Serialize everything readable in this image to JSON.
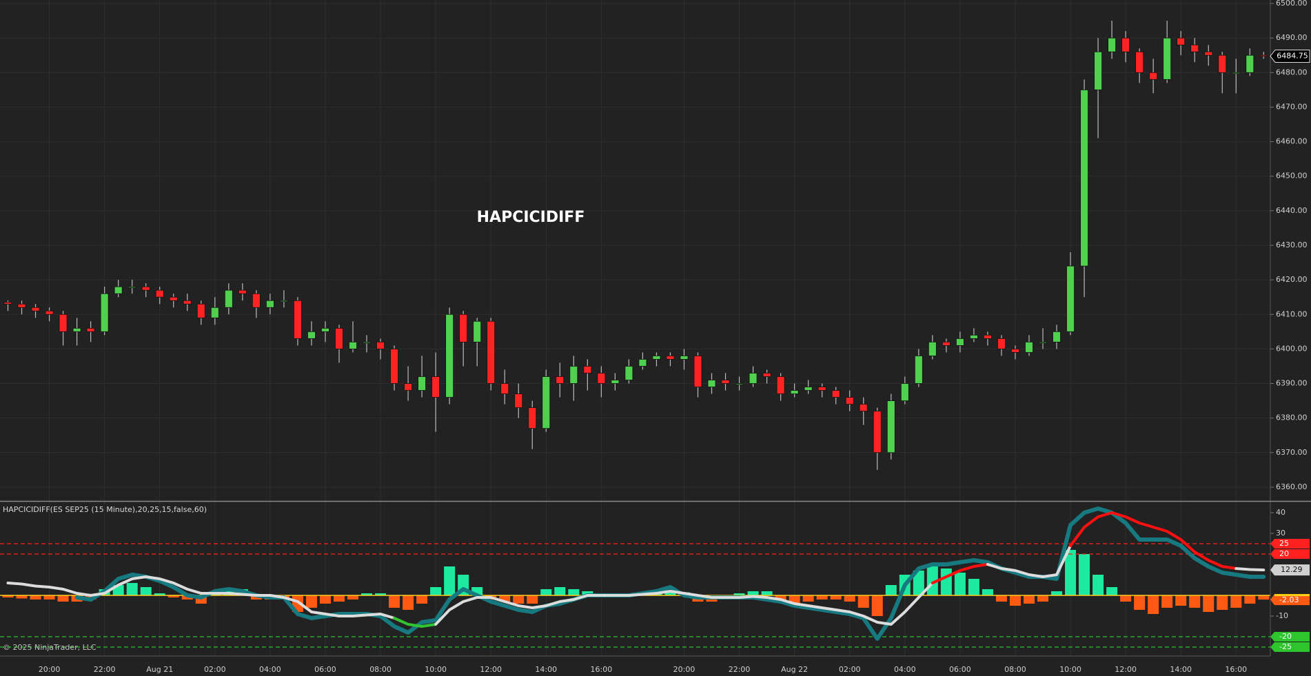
{
  "chart_data": [
    {
      "type": "candlestick",
      "title": "HAPCICIDIFF",
      "categories": [
        null,
        null,
        null,
        "20:00",
        null,
        null,
        null,
        "22:00",
        null,
        null,
        null,
        "Aug 21",
        null,
        null,
        null,
        "02:00",
        null,
        null,
        null,
        "04:00",
        null,
        null,
        null,
        "06:00",
        null,
        null,
        null,
        "08:00",
        null,
        null,
        null,
        "10:00",
        null,
        null,
        null,
        "12:00",
        null,
        null,
        null,
        "14:00",
        null,
        null,
        null,
        "16:00",
        null,
        null,
        null,
        null,
        null,
        "20:00",
        null,
        null,
        null,
        "22:00",
        null,
        null,
        null,
        "Aug 22",
        null,
        null,
        null,
        "02:00",
        null,
        null,
        null,
        "04:00",
        null,
        null,
        null,
        "06:00",
        null,
        null,
        null,
        "08:00",
        null,
        null,
        null,
        "10:00",
        null,
        null,
        null,
        "12:00",
        null,
        null,
        null,
        "14:00",
        null,
        null,
        null,
        "16:00",
        null,
        null
      ],
      "open": [
        6413.5,
        6413,
        6412,
        6411,
        6410,
        6405,
        6406,
        6405,
        6416,
        6418,
        6418,
        6417,
        6415,
        6414,
        6413,
        6409,
        6412,
        6417,
        6416,
        6412,
        6414,
        6414,
        6403,
        6405,
        6406,
        6400,
        6402,
        6402,
        6400,
        6390,
        6388,
        6392,
        6386,
        6410,
        6402,
        6408,
        6390,
        6387,
        6383,
        6377,
        6392,
        6390,
        6395,
        6393,
        6390,
        6391,
        6395,
        6397,
        6398,
        6397,
        6398,
        6389,
        6391,
        6390,
        6390,
        6393,
        6392,
        6387,
        6388,
        6389,
        6388,
        6386,
        6384,
        6382,
        6370,
        6385,
        6390,
        6398,
        6402,
        6401,
        6403,
        6404,
        6403,
        6400,
        6399,
        6402,
        6402,
        6405,
        6424,
        6475,
        6486,
        6490,
        6486,
        6480,
        6478,
        6490,
        6488,
        6486,
        6485,
        6480,
        6480,
        6485
      ],
      "high": [
        6414,
        6414,
        6413,
        6412,
        6411,
        6409,
        6408,
        6418,
        6420,
        6420,
        6419,
        6418,
        6416,
        6416,
        6414,
        6415,
        6419,
        6419,
        6417,
        6416,
        6417,
        6415,
        6408,
        6408,
        6407,
        6408,
        6404,
        6403,
        6401,
        6395,
        6398,
        6399,
        6412,
        6411,
        6409,
        6409,
        6394,
        6390,
        6385,
        6394,
        6396,
        6398,
        6397,
        6395,
        6393,
        6397,
        6399,
        6399,
        6399,
        6400,
        6399,
        6393,
        6393,
        6392,
        6395,
        6394,
        6393,
        6390,
        6391,
        6390,
        6389,
        6388,
        6386,
        6383,
        6387,
        6392,
        6400,
        6404,
        6403,
        6405,
        6406,
        6405,
        6404,
        6401,
        6404,
        6406,
        6407,
        6428,
        6478,
        6490,
        6495,
        6492,
        6487,
        6484,
        6495,
        6492,
        6490,
        6488,
        6486,
        6484,
        6487,
        6486
      ],
      "low": [
        6411,
        6410,
        6409,
        6408,
        6401,
        6401,
        6402,
        6404,
        6415,
        6416,
        6415,
        6413,
        6412,
        6411,
        6407,
        6407,
        6410,
        6414,
        6409,
        6410,
        6412,
        6401,
        6401,
        6402,
        6396,
        6399,
        6399,
        6397,
        6388,
        6385,
        6386,
        6376,
        6384,
        6395,
        6395,
        6388,
        6384,
        6380,
        6371,
        6376,
        6386,
        6385,
        6388,
        6386,
        6388,
        6390,
        6394,
        6395,
        6395,
        6394,
        6386,
        6387,
        6388,
        6388,
        6389,
        6390,
        6385,
        6386,
        6387,
        6386,
        6384,
        6382,
        6378,
        6365,
        6368,
        6384,
        6389,
        6397,
        6399,
        6399,
        6402,
        6401,
        6398,
        6397,
        6398,
        6400,
        6400,
        6404,
        6415,
        6461,
        6484,
        6483,
        6477,
        6474,
        6477,
        6485,
        6483,
        6482,
        6474,
        6474,
        6479,
        6484
      ],
      "close": [
        6413,
        6412,
        6411,
        6410,
        6405,
        6406,
        6405,
        6416,
        6418,
        6418,
        6417,
        6415,
        6414,
        6413,
        6409,
        6412,
        6417,
        6416,
        6412,
        6414,
        6414,
        6403,
        6405,
        6406,
        6400,
        6402,
        6402,
        6400,
        6390,
        6388,
        6392,
        6386,
        6410,
        6402,
        6408,
        6390,
        6387,
        6383,
        6377,
        6392,
        6390,
        6395,
        6393,
        6390,
        6391,
        6395,
        6397,
        6398,
        6397,
        6398,
        6389,
        6391,
        6390,
        6390,
        6393,
        6392,
        6387,
        6388,
        6389,
        6388,
        6386,
        6384,
        6382,
        6370,
        6385,
        6390,
        6398,
        6402,
        6401,
        6403,
        6404,
        6403,
        6400,
        6399,
        6402,
        6402,
        6405,
        6424,
        6475,
        6486,
        6490,
        6486,
        6480,
        6478,
        6490,
        6488,
        6486,
        6485,
        6480,
        6480,
        6485,
        6484.75
      ],
      "up_color": "#4fd04f",
      "down_color": "#ff2424",
      "wick_color": "#bdbdbd",
      "ylim": [
        6356,
        6501
      ],
      "yticks": [
        {
          "value": 6360,
          "label": "6360.00"
        },
        {
          "value": 6370,
          "label": "6370.00"
        },
        {
          "value": 6380,
          "label": "6380.00"
        },
        {
          "value": 6390,
          "label": "6390.00"
        },
        {
          "value": 6400,
          "label": "6400.00"
        },
        {
          "value": 6410,
          "label": "6410.00"
        },
        {
          "value": 6420,
          "label": "6420.00"
        },
        {
          "value": 6430,
          "label": "6430.00"
        },
        {
          "value": 6440,
          "label": "6440.00"
        },
        {
          "value": 6450,
          "label": "6450.00"
        },
        {
          "value": 6460,
          "label": "6460.00"
        },
        {
          "value": 6470,
          "label": "6470.00"
        },
        {
          "value": 6480,
          "label": "6480.00"
        },
        {
          "value": 6490,
          "label": "6490.00"
        },
        {
          "value": 6500,
          "label": "6500.00"
        }
      ],
      "grid": true
    },
    {
      "type": "combo",
      "title": "HAPCICIDIFF(ES SEP25 (15 Minute),20,25,15,false,60)",
      "annotation": "© 2025 NinjaTrader, LLC",
      "ylim": [
        -29,
        45
      ],
      "yticks": [
        40,
        30,
        -10
      ],
      "levels": [
        {
          "value": 25,
          "color": "#ff2020"
        },
        {
          "value": 20,
          "color": "#ff2020"
        },
        {
          "value": -20,
          "color": "#2ec42e"
        },
        {
          "value": -25,
          "color": "#2ec42e"
        }
      ],
      "zero_line": {
        "value": 0,
        "color": "#ffd21a"
      },
      "histogram": {
        "up_color": "#1de9a0",
        "down_color": "#ff5a14",
        "values": [
          -1,
          -1.5,
          -2,
          -2,
          -3,
          -3,
          -2,
          3,
          5,
          6,
          4,
          1,
          -1,
          -2,
          -4,
          2,
          3,
          3,
          -2,
          -2,
          -1,
          -8,
          -6,
          -4,
          -3,
          -2,
          1,
          1,
          -6,
          -7,
          -4,
          4,
          14,
          10,
          4,
          -2,
          -3,
          -4,
          -4,
          3,
          4,
          3,
          2,
          1,
          1,
          0.5,
          1.5,
          2,
          2,
          1.5,
          -3,
          -3,
          -2,
          1,
          2,
          2,
          -3,
          -4,
          -3,
          -2,
          -2,
          -3,
          -6,
          -10,
          5,
          10,
          12,
          14,
          13,
          11,
          8,
          3,
          -3,
          -5,
          -4,
          -3,
          2,
          22,
          20,
          10,
          4,
          -3,
          -7,
          -9,
          -6,
          -5,
          -6,
          -8,
          -7,
          -6,
          -4,
          -2.03
        ]
      },
      "series": [
        {
          "color": "#167a80",
          "width": 6,
          "values": [
            null,
            null,
            null,
            null,
            null,
            -1,
            -2,
            2,
            8,
            10,
            9,
            7,
            4,
            0,
            -1,
            2,
            3,
            2,
            0,
            -1,
            -1,
            -9,
            -11,
            -10,
            -9,
            -9,
            -9,
            -10,
            -15,
            -18,
            -13,
            -12,
            -2,
            3,
            0,
            -3,
            -5,
            -7,
            -8,
            -5,
            -4,
            -2,
            0,
            0,
            0,
            0,
            1,
            2,
            4,
            0,
            -1,
            -1,
            -1,
            -1,
            -1,
            -2,
            -3,
            -5,
            -6,
            -7,
            -8,
            -9,
            -11,
            -21,
            -11,
            5,
            13,
            15,
            15,
            16,
            17,
            16,
            13,
            11,
            9,
            9,
            8,
            34,
            40,
            42,
            40,
            35,
            27,
            27,
            27,
            24,
            18,
            14,
            11,
            10,
            9,
            9
          ]
        },
        {
          "width": 4,
          "values": [
            6,
            5.5,
            4.5,
            4,
            3,
            1,
            0,
            1,
            5,
            8,
            9,
            8,
            6,
            3,
            1,
            1,
            1,
            0.5,
            0,
            0,
            -1,
            -3,
            -8,
            -9,
            -10,
            -10,
            -9.5,
            -9,
            -11,
            -14,
            -15,
            -14,
            -7,
            -3,
            -1,
            -1,
            -3,
            -5,
            -6,
            -5,
            -3,
            -2,
            0,
            0,
            0,
            0,
            0.5,
            1,
            2,
            1,
            0,
            -1,
            -1,
            -1,
            -0.5,
            -1,
            -2,
            -4,
            -5,
            -6,
            -7,
            -8,
            -10,
            -13,
            -14,
            -8,
            -1,
            6,
            9,
            12,
            14,
            15,
            13,
            12,
            10,
            9,
            10,
            24,
            33,
            38,
            40,
            38,
            35,
            33,
            31,
            27,
            21,
            17,
            14,
            13,
            12.5,
            12.29
          ],
          "colors": [
            "#dcdcdc",
            "#dcdcdc",
            "#dcdcdc",
            "#dcdcdc",
            "#dcdcdc",
            "#dcdcdc",
            "#dcdcdc",
            "#dcdcdc",
            "#dcdcdc",
            "#dcdcdc",
            "#dcdcdc",
            "#dcdcdc",
            "#dcdcdc",
            "#dcdcdc",
            "#dcdcdc",
            "#dcdcdc",
            "#dcdcdc",
            "#dcdcdc",
            "#dcdcdc",
            "#dcdcdc",
            "#dcdcdc",
            "#dcdcdc",
            "#dcdcdc",
            "#dcdcdc",
            "#dcdcdc",
            "#dcdcdc",
            "#dcdcdc",
            "#dcdcdc",
            "#33c433",
            "#33c433",
            "#33c433",
            "#dcdcdc",
            "#dcdcdc",
            "#dcdcdc",
            "#dcdcdc",
            "#dcdcdc",
            "#dcdcdc",
            "#dcdcdc",
            "#dcdcdc",
            "#dcdcdc",
            "#dcdcdc",
            "#dcdcdc",
            "#dcdcdc",
            "#dcdcdc",
            "#dcdcdc",
            "#dcdcdc",
            "#dcdcdc",
            "#dcdcdc",
            "#dcdcdc",
            "#dcdcdc",
            "#dcdcdc",
            "#dcdcdc",
            "#dcdcdc",
            "#dcdcdc",
            "#dcdcdc",
            "#dcdcdc",
            "#dcdcdc",
            "#dcdcdc",
            "#dcdcdc",
            "#dcdcdc",
            "#dcdcdc",
            "#dcdcdc",
            "#dcdcdc",
            "#dcdcdc",
            "#dcdcdc",
            "#dcdcdc",
            "#dcdcdc",
            "#ff1010",
            "#ff1010",
            "#ff1010",
            "#ff1010",
            "#dcdcdc",
            "#dcdcdc",
            "#dcdcdc",
            "#dcdcdc",
            "#dcdcdc",
            "#dcdcdc",
            "#ff1010",
            "#ff1010",
            "#ff1010",
            "#ff1010",
            "#ff1010",
            "#ff1010",
            "#ff1010",
            "#ff1010",
            "#ff1010",
            "#ff1010",
            "#ff1010",
            "#ff1010",
            "#dcdcdc",
            "#dcdcdc",
            "#dcdcdc"
          ]
        }
      ]
    }
  ]
}
